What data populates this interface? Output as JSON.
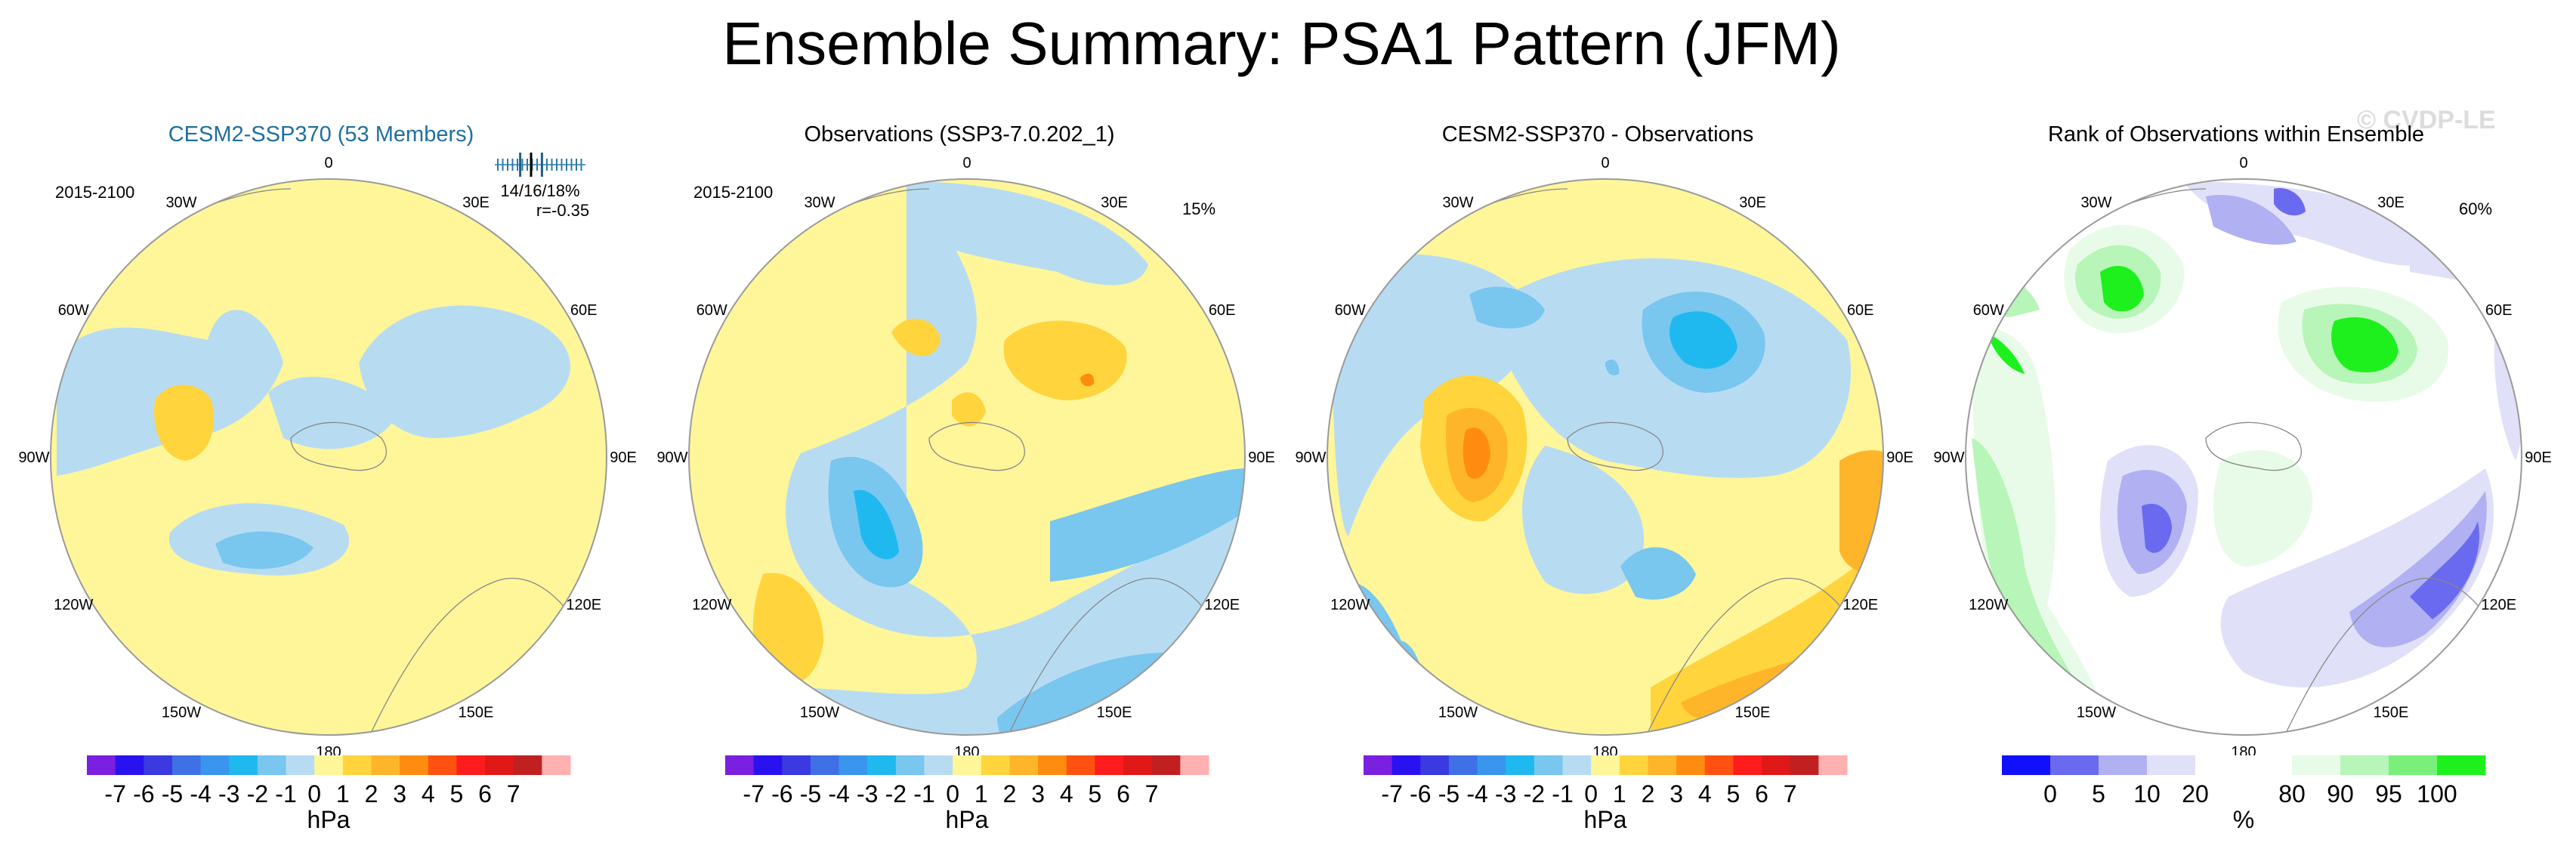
{
  "figure": {
    "title": "Ensemble Summary: PSA1 Pattern (JFM)",
    "watermark": "© CVDP-LE"
  },
  "colors": {
    "hpa": [
      "#7b1fe0",
      "#2a12f0",
      "#3a3ae0",
      "#3f70e6",
      "#3a96ec",
      "#1fb9f0",
      "#79c6ef",
      "#b7dcf2",
      "#fff69a",
      "#ffd43d",
      "#ffb52a",
      "#ff8c10",
      "#ff5212",
      "#ff1c1c",
      "#e01818",
      "#c02020",
      "#ffb0b0"
    ],
    "rank": [
      "#1010ff",
      "#6a6af0",
      "#b0b0f2",
      "#e0e0f8",
      "#ffffff",
      "#ffffff",
      "#e8fbe8",
      "#b8f5b8",
      "#7af07a",
      "#1ef01e"
    ]
  },
  "chart_data": [
    {
      "type": "heatmap",
      "title": "CESM2-SSP370 (53 Members)",
      "period": "2015-2100",
      "stats_text": "14/16/18%",
      "r_text": "r=-0.35",
      "member_ticks": [
        14,
        15,
        16,
        17,
        18
      ],
      "lon_labels": [
        "0",
        "30E",
        "60E",
        "90E",
        "120E",
        "150E",
        "180",
        "150W",
        "120W",
        "90W",
        "60W",
        "30W"
      ],
      "colorbar": {
        "labels": [
          "-7",
          "-6",
          "-5",
          "-4",
          "-3",
          "-2",
          "-1",
          "0",
          "1",
          "2",
          "3",
          "4",
          "5",
          "6",
          "7"
        ],
        "unit": "hPa"
      }
    },
    {
      "type": "heatmap",
      "title": "Observations (SSP3-7.0.202_1)",
      "period": "2015-2100",
      "percent": "15%",
      "lon_labels": [
        "0",
        "30E",
        "60E",
        "90E",
        "120E",
        "150E",
        "180",
        "150W",
        "120W",
        "90W",
        "60W",
        "30W"
      ],
      "colorbar": {
        "labels": [
          "-7",
          "-6",
          "-5",
          "-4",
          "-3",
          "-2",
          "-1",
          "0",
          "1",
          "2",
          "3",
          "4",
          "5",
          "6",
          "7"
        ],
        "unit": "hPa"
      }
    },
    {
      "type": "heatmap",
      "title": "CESM2-SSP370 - Observations",
      "lon_labels": [
        "0",
        "30E",
        "60E",
        "90E",
        "120E",
        "150E",
        "180",
        "150W",
        "120W",
        "90W",
        "60W",
        "30W"
      ],
      "colorbar": {
        "labels": [
          "-7",
          "-6",
          "-5",
          "-4",
          "-3",
          "-2",
          "-1",
          "0",
          "1",
          "2",
          "3",
          "4",
          "5",
          "6",
          "7"
        ],
        "unit": "hPa"
      }
    },
    {
      "type": "heatmap",
      "title": "Rank of Observations within Ensemble",
      "percent": "60%",
      "lon_labels": [
        "0",
        "30E",
        "60E",
        "90E",
        "120E",
        "150E",
        "180",
        "150W",
        "120W",
        "90W",
        "60W",
        "30W"
      ],
      "colorbar": {
        "labels": [
          "0",
          "5",
          "10",
          "20",
          "80",
          "90",
          "95",
          "100"
        ],
        "unit": "%"
      }
    }
  ]
}
